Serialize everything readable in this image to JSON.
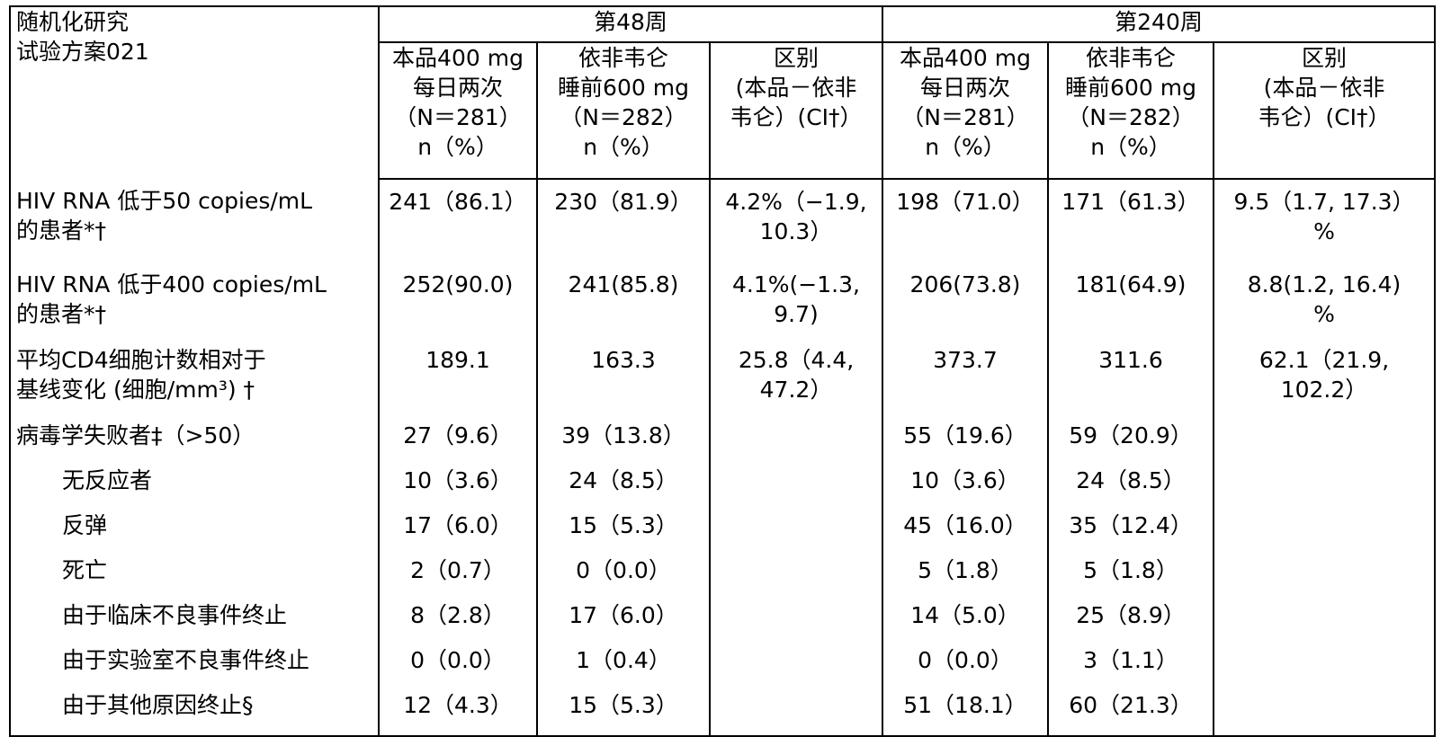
{
  "table": {
    "corner_line1": "随机化研究",
    "corner_line2": "试验方案021",
    "groups": [
      "第48周",
      "第240周"
    ],
    "columns": [
      [
        "本品400 mg",
        "每日两次",
        "（N＝281）",
        "n（%）"
      ],
      [
        "依非韦仑",
        "睡前600 mg",
        "（N＝282）",
        "n（%）"
      ],
      [
        "区别",
        "(本品－依非",
        "韦仑）(CI†）",
        ""
      ],
      [
        "本品400 mg",
        "每日两次",
        "（N＝281）",
        "n（%）"
      ],
      [
        "依非韦仑",
        "睡前600 mg",
        "（N＝282）",
        "n（%）"
      ],
      [
        "区别",
        "(本品－依非",
        "韦仑）(CI†）",
        ""
      ]
    ],
    "rows": [
      {
        "label": [
          "HIV RNA 低于50 copies/mL",
          "的患者*†"
        ],
        "sub": false,
        "cells": [
          [
            "241（86.1）"
          ],
          [
            "230（81.9）"
          ],
          [
            "4.2%（−1.9,",
            "10.3）"
          ],
          [
            "198（71.0）"
          ],
          [
            "171（61.3）"
          ],
          [
            "9.5（1.7, 17.3）",
            "%"
          ]
        ]
      },
      {
        "label": [
          "HIV RNA 低于400 copies/mL",
          "的患者*†"
        ],
        "sub": false,
        "cells": [
          [
            "252(90.0)"
          ],
          [
            "241(85.8)"
          ],
          [
            "4.1%(−1.3,",
            "9.7)"
          ],
          [
            "206(73.8)"
          ],
          [
            "181(64.9)"
          ],
          [
            "8.8(1.2, 16.4)",
            "%"
          ]
        ]
      },
      {
        "label": [
          "平均CD4细胞计数相对于",
          "基线变化 (细胞/mm³) †"
        ],
        "sub": false,
        "cells": [
          [
            "189.1"
          ],
          [
            "163.3"
          ],
          [
            "25.8（4.4,",
            "47.2）"
          ],
          [
            "373.7"
          ],
          [
            "311.6"
          ],
          [
            "62.1（21.9,",
            "102.2）"
          ]
        ]
      },
      {
        "label": [
          "病毒学失败者‡（>50）"
        ],
        "sub": false,
        "cells": [
          [
            "27（9.6）"
          ],
          [
            "39（13.8）"
          ],
          [
            ""
          ],
          [
            "55（19.6）"
          ],
          [
            "59（20.9）"
          ],
          [
            ""
          ]
        ]
      },
      {
        "label": [
          "无反应者"
        ],
        "sub": true,
        "cells": [
          [
            "10（3.6）"
          ],
          [
            "24（8.5）"
          ],
          [
            ""
          ],
          [
            "10（3.6）"
          ],
          [
            "24（8.5）"
          ],
          [
            ""
          ]
        ]
      },
      {
        "label": [
          "反弹"
        ],
        "sub": true,
        "cells": [
          [
            "17（6.0）"
          ],
          [
            "15（5.3）"
          ],
          [
            ""
          ],
          [
            "45（16.0）"
          ],
          [
            "35（12.4）"
          ],
          [
            ""
          ]
        ]
      },
      {
        "label": [
          "死亡"
        ],
        "sub": true,
        "cells": [
          [
            "2（0.7）"
          ],
          [
            "0（0.0）"
          ],
          [
            ""
          ],
          [
            "5（1.8）"
          ],
          [
            "5（1.8）"
          ],
          [
            ""
          ]
        ]
      },
      {
        "label": [
          "由于临床不良事件终止"
        ],
        "sub": true,
        "cells": [
          [
            "8（2.8）"
          ],
          [
            "17（6.0）"
          ],
          [
            ""
          ],
          [
            "14（5.0）"
          ],
          [
            "25（8.9）"
          ],
          [
            ""
          ]
        ]
      },
      {
        "label": [
          "由于实验室不良事件终止"
        ],
        "sub": true,
        "cells": [
          [
            "0（0.0）"
          ],
          [
            "1（0.4）"
          ],
          [
            ""
          ],
          [
            "0（0.0）"
          ],
          [
            "3（1.1）"
          ],
          [
            ""
          ]
        ]
      },
      {
        "label": [
          "由于其他原因终止§"
        ],
        "sub": true,
        "cells": [
          [
            "12（4.3）"
          ],
          [
            "15（5.3）"
          ],
          [
            ""
          ],
          [
            "51（18.1）"
          ],
          [
            "60（21.3）"
          ],
          [
            ""
          ]
        ]
      }
    ]
  }
}
